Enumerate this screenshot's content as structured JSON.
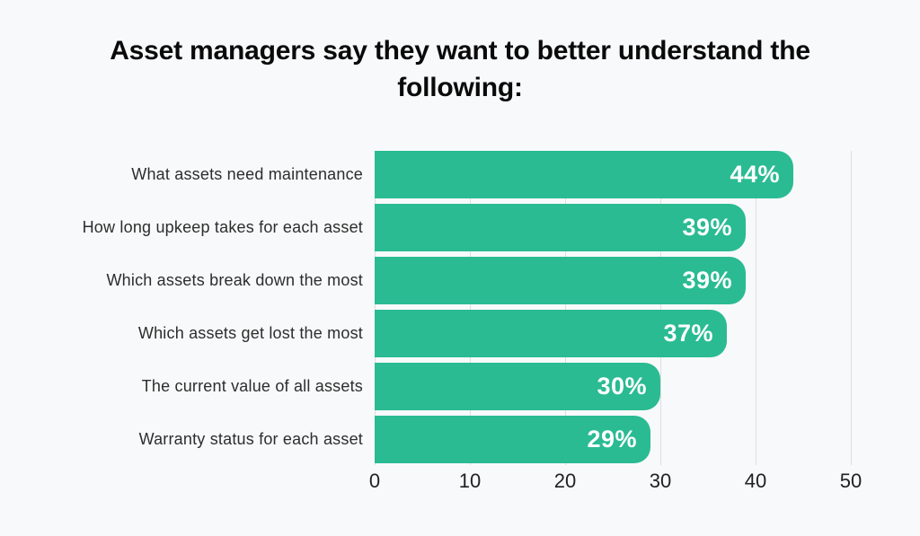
{
  "chart_data": {
    "type": "bar",
    "orientation": "horizontal",
    "title": "Asset managers say they want to better understand the following:",
    "categories": [
      "What assets need maintenance",
      "How long upkeep takes for each asset",
      "Which assets break down the most",
      "Which assets get lost the most",
      "The current value of all assets",
      "Warranty status for each asset"
    ],
    "values": [
      44,
      39,
      39,
      37,
      30,
      29
    ],
    "data_labels": [
      "44%",
      "39%",
      "39%",
      "37%",
      "30%",
      "29%"
    ],
    "x_ticks": [
      0,
      10,
      20,
      30,
      40,
      50
    ],
    "xlim": [
      0,
      57
    ],
    "xlabel": "",
    "ylabel": "",
    "grid": "vertical-only",
    "legend": false,
    "colors": {
      "bar": "#2abb93",
      "bar_value_label": "#ffffff",
      "background": "#f8f9fa",
      "gridline": "#dcdedf",
      "title": "#0a0a0a",
      "category_label": "#2d2d2d",
      "axis_tick_label": "#212121"
    }
  }
}
